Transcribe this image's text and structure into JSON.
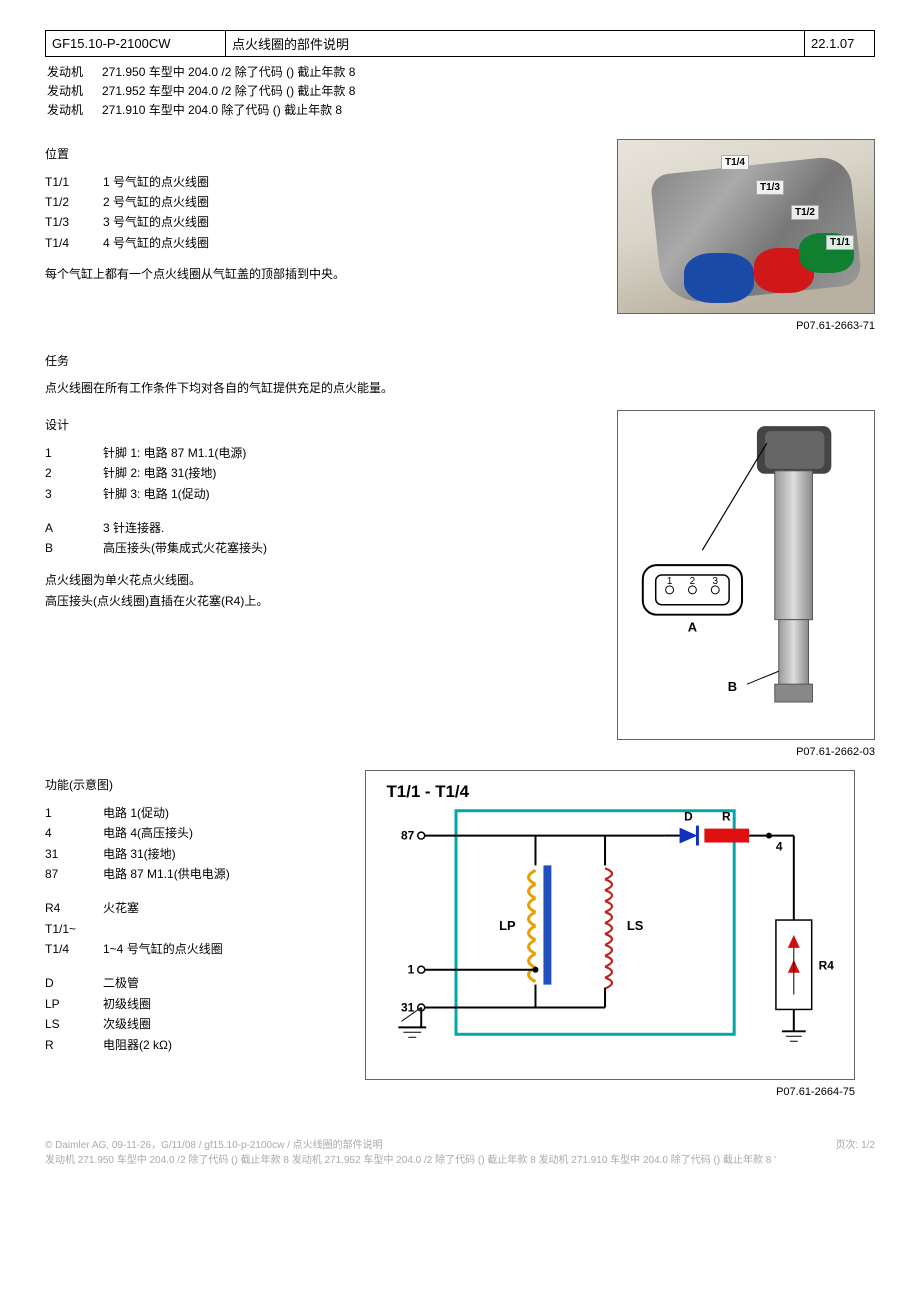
{
  "header": {
    "code": "GF15.10-P-2100CW",
    "title": "点火线圈的部件说明",
    "date": "22.1.07"
  },
  "engines": [
    {
      "label": "发动机",
      "text": "271.950 车型中 204.0 /2 除了代码 () 截止年款 8"
    },
    {
      "label": "发动机",
      "text": "271.952 车型中 204.0 /2 除了代码 () 截止年款 8"
    },
    {
      "label": "发动机",
      "text": "271.910 车型中 204.0 除了代码 () 截止年款 8"
    }
  ],
  "position": {
    "title": "位置",
    "items": [
      {
        "k": "T1/1",
        "v": "1 号气缸的点火线圈"
      },
      {
        "k": "T1/2",
        "v": "2 号气缸的点火线圈"
      },
      {
        "k": "T1/3",
        "v": "3 号气缸的点火线圈"
      },
      {
        "k": "T1/4",
        "v": "4 号气缸的点火线圈"
      }
    ],
    "note": "每个气缸上都有一个点火线圈从气缸盖的顶部插到中央。"
  },
  "fig1": {
    "caption": "P07.61-2663-71",
    "labels": {
      "l1": "T1/1",
      "l2": "T1/2",
      "l3": "T1/3",
      "l4": "T1/4"
    }
  },
  "task": {
    "title": "任务",
    "text": "点火线圈在所有工作条件下均对各自的气缸提供充足的点火能量。"
  },
  "design": {
    "title": "设计",
    "pins": [
      {
        "k": "1",
        "v": "针脚 1: 电路 87 M1.1(电源)"
      },
      {
        "k": "2",
        "v": "针脚 2: 电路 31(接地)"
      },
      {
        "k": "3",
        "v": "针脚 3: 电路 1(促动)"
      }
    ],
    "parts": [
      {
        "k": "A",
        "v": "3 针连接器."
      },
      {
        "k": "B",
        "v": "高压接头(带集成式火花塞接头)"
      }
    ],
    "note1": "点火线圈为单火花点火线圈。",
    "note2": "高压接头(点火线圈)直插在火花塞(R4)上。"
  },
  "fig2": {
    "caption": "P07.61-2662-03",
    "pin_labels": {
      "p1": "1",
      "p2": "2",
      "p3": "3"
    },
    "conn_label": "A",
    "hv_label": "B"
  },
  "function": {
    "title": "功能(示意图)",
    "circuits": [
      {
        "k": "1",
        "v": "电路 1(促动)"
      },
      {
        "k": "4",
        "v": "电路 4(高压接头)"
      },
      {
        "k": "31",
        "v": "电路 31(接地)"
      },
      {
        "k": "87",
        "v": "电路 87 M1.1(供电电源)"
      }
    ],
    "r4": [
      {
        "k": "R4",
        "v": "火花塞"
      },
      {
        "k": "T1/1~",
        "v": ""
      },
      {
        "k": "T1/4",
        "v": "1~4 号气缸的点火线圈"
      }
    ],
    "components": [
      {
        "k": "D",
        "v": "二极管"
      },
      {
        "k": "LP",
        "v": "初级线圈"
      },
      {
        "k": "LS",
        "v": "次级线圈"
      },
      {
        "k": "R",
        "v": "电阻器(2 kΩ)"
      }
    ]
  },
  "fig3": {
    "caption": "P07.61-2664-75",
    "title": "T1/1 - T1/4",
    "labels": {
      "t87": "87",
      "t1": "1",
      "t31": "31",
      "t4": "4",
      "LP": "LP",
      "LS": "LS",
      "D": "D",
      "R": "R",
      "R4": "R4"
    },
    "colors": {
      "box": "#00a8a8",
      "lp": "#e8a000",
      "lp_core": "#2050c0",
      "ls": "#c02020",
      "diode": "#1030c0",
      "resistor": "#e01010",
      "wire": "#000000",
      "r4_body": "#ffffff",
      "r4_arrow": "#d01010"
    }
  },
  "footer": {
    "copyright": "© Daimler AG, 09-11-26，G/11/08 / gf15.10-p-2100cw / 点火线圈的部件说明",
    "line2": "发动机 271.950 车型中 204.0 /2 除了代码 () 截止年款 8 发动机 271.952 车型中 204.0 /2 除了代码 () 截止年款 8 发动机 271.910 车型中 204.0 除了代码 () 截止年款 8 '",
    "page": "页次: 1/2"
  }
}
